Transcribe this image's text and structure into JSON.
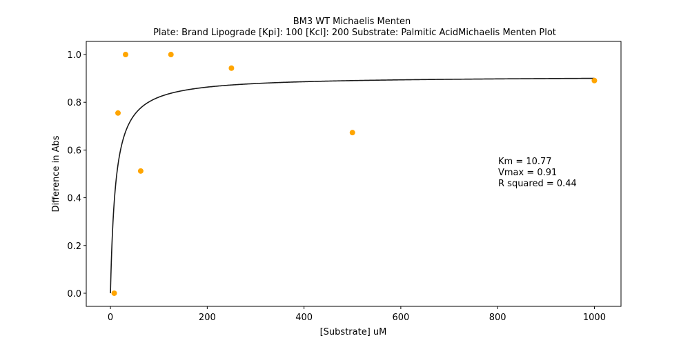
{
  "chart_data": {
    "type": "scatter",
    "title_line1": "BM3 WT Michaelis Menten",
    "title_line2": "Plate: Brand Lipograde  [Kpi]: 100  [Kcl]: 200  Substrate: Palmitic AcidMichaelis Menten Plot",
    "xlabel": "[Substrate] uM",
    "ylabel": "Difference in Abs",
    "xlim": [
      -50,
      1055
    ],
    "ylim": [
      -0.055,
      1.055
    ],
    "xticks": [
      0,
      200,
      400,
      600,
      800,
      1000
    ],
    "yticks": [
      0.0,
      0.2,
      0.4,
      0.6,
      0.8,
      1.0
    ],
    "xtick_labels": [
      "0",
      "200",
      "400",
      "600",
      "800",
      "1000"
    ],
    "ytick_labels": [
      "0.0",
      "0.2",
      "0.4",
      "0.6",
      "0.8",
      "1.0"
    ],
    "grid": false,
    "points": [
      {
        "x": 7.8,
        "y": 0.0
      },
      {
        "x": 15.6,
        "y": 0.755
      },
      {
        "x": 31.25,
        "y": 1.0
      },
      {
        "x": 62.5,
        "y": 0.512
      },
      {
        "x": 125,
        "y": 1.0
      },
      {
        "x": 250,
        "y": 0.943
      },
      {
        "x": 500,
        "y": 0.673
      },
      {
        "x": 1000,
        "y": 0.891
      }
    ],
    "point_color": "#ffa500",
    "fit": {
      "Km": 10.77,
      "Vmax": 0.91,
      "x_start": 0,
      "x_end": 1000,
      "color": "#1a1a1a"
    },
    "annotations": [
      "Km = 10.77",
      "Vmax = 0.91",
      "R squared = 0.44"
    ]
  }
}
